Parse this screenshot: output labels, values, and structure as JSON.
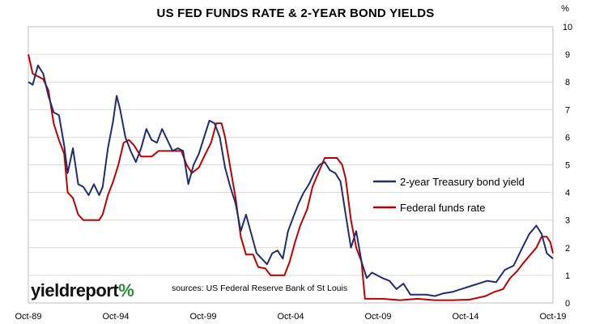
{
  "chart_data": {
    "type": "line",
    "title": "US FED FUNDS RATE & 2-YEAR BOND YIELDS",
    "y_unit_label": "%",
    "ylim": [
      0,
      10
    ],
    "yticks": [
      "0",
      "1",
      "2",
      "3",
      "4",
      "5",
      "6",
      "7",
      "8",
      "9",
      "10"
    ],
    "xlim": [
      1989.75,
      2019.75
    ],
    "xtick_labels": [
      "Oct-89",
      "Oct-94",
      "Oct-99",
      "Oct-04",
      "Oct-09",
      "Oct-14",
      "Oct-19"
    ],
    "xtick_values": [
      1989.75,
      1994.75,
      1999.75,
      2004.75,
      2009.75,
      2014.75,
      2019.75
    ],
    "grid": "horizontal",
    "legend_placement": "right",
    "series": [
      {
        "name": "2-year Treasury bond yield",
        "color": "#1f2d6e",
        "x": [
          1989.75,
          1990.0,
          1990.3,
          1990.6,
          1990.9,
          1991.2,
          1991.5,
          1991.8,
          1992.0,
          1992.3,
          1992.6,
          1992.9,
          1993.2,
          1993.5,
          1993.8,
          1994.0,
          1994.3,
          1994.6,
          1994.8,
          1995.0,
          1995.3,
          1995.6,
          1995.9,
          1996.2,
          1996.5,
          1996.8,
          1997.1,
          1997.4,
          1997.7,
          1998.0,
          1998.3,
          1998.6,
          1998.9,
          1999.2,
          1999.5,
          1999.8,
          2000.1,
          2000.4,
          2000.7,
          2001.0,
          2001.3,
          2001.6,
          2001.9,
          2002.2,
          2002.5,
          2002.8,
          2003.1,
          2003.4,
          2003.7,
          2004.0,
          2004.3,
          2004.6,
          2004.9,
          2005.2,
          2005.5,
          2005.8,
          2006.1,
          2006.4,
          2006.7,
          2007.0,
          2007.3,
          2007.6,
          2007.9,
          2008.2,
          2008.5,
          2008.8,
          2009.1,
          2009.4,
          2009.7,
          2010.0,
          2010.4,
          2010.8,
          2011.2,
          2011.6,
          2012.0,
          2012.5,
          2013.0,
          2013.5,
          2014.0,
          2014.5,
          2015.0,
          2015.5,
          2016.0,
          2016.5,
          2017.0,
          2017.5,
          2018.0,
          2018.4,
          2018.8,
          2019.1,
          2019.4,
          2019.75
        ],
        "values": [
          8.0,
          7.9,
          8.6,
          8.3,
          7.5,
          6.9,
          6.8,
          5.7,
          4.7,
          5.6,
          4.3,
          4.2,
          3.9,
          4.3,
          3.9,
          4.2,
          5.6,
          6.6,
          7.5,
          7.0,
          6.0,
          5.5,
          5.1,
          5.6,
          6.3,
          5.9,
          5.8,
          6.3,
          5.9,
          5.5,
          5.6,
          5.5,
          4.3,
          5.0,
          5.4,
          6.0,
          6.6,
          6.5,
          6.0,
          4.9,
          4.2,
          3.6,
          2.6,
          3.2,
          2.5,
          1.8,
          1.6,
          1.4,
          1.8,
          1.9,
          1.6,
          2.6,
          3.1,
          3.6,
          4.0,
          4.3,
          4.7,
          5.0,
          5.1,
          4.8,
          4.7,
          4.4,
          3.2,
          2.0,
          2.6,
          1.5,
          0.9,
          1.1,
          1.0,
          0.9,
          0.8,
          0.5,
          0.7,
          0.3,
          0.3,
          0.3,
          0.25,
          0.35,
          0.4,
          0.5,
          0.6,
          0.7,
          0.8,
          0.75,
          1.2,
          1.35,
          2.0,
          2.5,
          2.8,
          2.5,
          1.8,
          1.6
        ]
      },
      {
        "name": "Federal funds rate",
        "color": "#c00000",
        "x": [
          1989.75,
          1990.0,
          1990.3,
          1990.6,
          1990.9,
          1991.2,
          1991.5,
          1991.8,
          1992.0,
          1992.3,
          1992.6,
          1992.9,
          1993.2,
          1993.5,
          1993.8,
          1994.0,
          1994.3,
          1994.6,
          1994.9,
          1995.2,
          1995.5,
          1995.8,
          1996.2,
          1996.5,
          1996.8,
          1997.2,
          1997.6,
          1998.0,
          1998.5,
          1998.8,
          1999.1,
          1999.5,
          1999.8,
          2000.2,
          2000.5,
          2000.8,
          2001.0,
          2001.3,
          2001.6,
          2001.9,
          2002.2,
          2002.6,
          2002.9,
          2003.3,
          2003.6,
          2004.0,
          2004.4,
          2004.7,
          2005.0,
          2005.3,
          2005.7,
          2006.0,
          2006.4,
          2006.7,
          2007.0,
          2007.4,
          2007.7,
          2007.9,
          2008.2,
          2008.5,
          2008.8,
          2009.0,
          2009.5,
          2010.0,
          2011.0,
          2012.0,
          2013.0,
          2014.0,
          2015.0,
          2015.9,
          2016.4,
          2016.9,
          2017.3,
          2017.7,
          2018.0,
          2018.4,
          2018.8,
          2019.1,
          2019.4,
          2019.6,
          2019.75
        ],
        "values": [
          9.0,
          8.3,
          8.2,
          8.1,
          7.7,
          6.5,
          5.9,
          5.4,
          4.0,
          3.8,
          3.2,
          3.0,
          3.0,
          3.0,
          3.0,
          3.2,
          3.9,
          4.4,
          5.0,
          5.8,
          5.9,
          5.7,
          5.3,
          5.3,
          5.3,
          5.5,
          5.5,
          5.5,
          5.5,
          5.0,
          4.7,
          4.9,
          5.3,
          5.8,
          6.5,
          6.5,
          6.0,
          4.9,
          3.8,
          2.4,
          1.75,
          1.75,
          1.3,
          1.25,
          1.0,
          1.0,
          1.0,
          1.5,
          2.2,
          2.8,
          3.4,
          4.2,
          4.8,
          5.25,
          5.25,
          5.25,
          5.0,
          4.5,
          3.0,
          2.0,
          1.5,
          0.15,
          0.15,
          0.15,
          0.1,
          0.15,
          0.1,
          0.1,
          0.12,
          0.25,
          0.4,
          0.5,
          0.9,
          1.15,
          1.4,
          1.7,
          2.0,
          2.4,
          2.4,
          2.2,
          1.8
        ]
      }
    ],
    "source_note": "sources: US Federal Reserve Bank of St Louis",
    "brand": "yieldreport",
    "brand_symbol": "%"
  }
}
